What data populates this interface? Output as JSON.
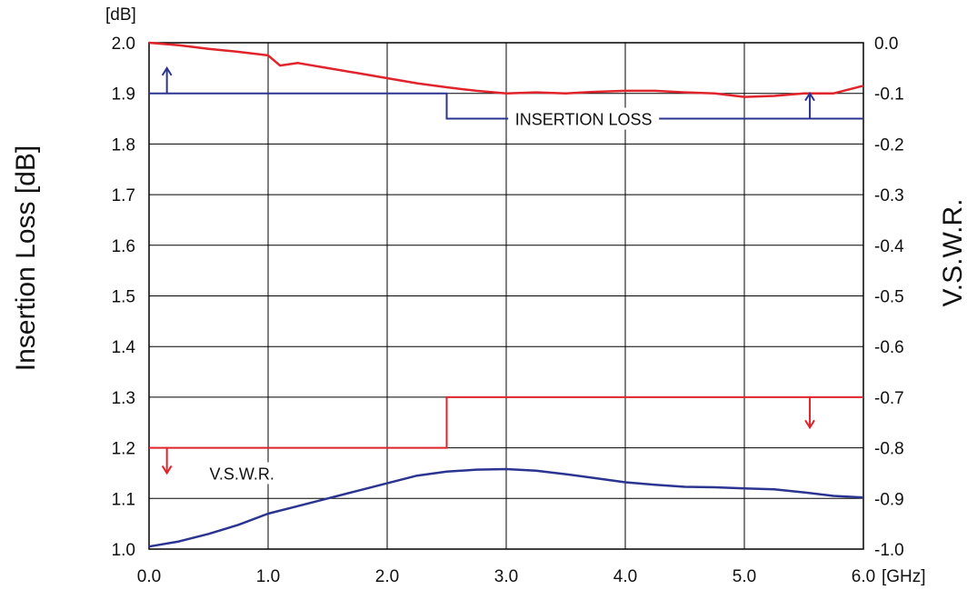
{
  "chart_data": {
    "type": "line",
    "title": "",
    "xlabel": "",
    "x_unit": "[GHz]",
    "ylabel_left": "Insertion Loss [dB]",
    "ylabel_right": "V.S.W.R.",
    "y_unit_left": "[dB]",
    "xlim": [
      0,
      6
    ],
    "ylim_left": [
      1.0,
      2.0
    ],
    "ylim_right": [
      -1.0,
      0.0
    ],
    "grid": true,
    "x_ticks": [
      "0.0",
      "1.0",
      "2.0",
      "3.0",
      "4.0",
      "5.0",
      "6.0"
    ],
    "y_ticks_left": [
      "1.0",
      "1.1",
      "1.2",
      "1.3",
      "1.4",
      "1.5",
      "1.6",
      "1.7",
      "1.8",
      "1.9",
      "2.0"
    ],
    "y_ticks_right": [
      "-1.0",
      "-0.9",
      "-0.8",
      "-0.7",
      "-0.6",
      "-0.5",
      "-0.4",
      "-0.3",
      "-0.2",
      "-0.1",
      "0.0"
    ],
    "colors": {
      "insertion_loss": "#2b3591",
      "vswr": "#e0242b",
      "grid": "#000000"
    },
    "series": [
      {
        "name": "INSERTION LOSS",
        "axis": "right",
        "color": "#e0242b",
        "x": [
          0.0,
          0.25,
          0.5,
          0.75,
          1.0,
          1.1,
          1.25,
          1.5,
          1.75,
          2.0,
          2.25,
          2.5,
          2.75,
          3.0,
          3.25,
          3.5,
          3.75,
          4.0,
          4.25,
          4.5,
          4.75,
          5.0,
          5.25,
          5.5,
          5.75,
          6.0
        ],
        "y": [
          0.0,
          -0.005,
          -0.012,
          -0.018,
          -0.025,
          -0.045,
          -0.04,
          -0.05,
          -0.06,
          -0.07,
          -0.08,
          -0.088,
          -0.095,
          -0.1,
          -0.098,
          -0.1,
          -0.097,
          -0.095,
          -0.095,
          -0.098,
          -0.1,
          -0.107,
          -0.105,
          -0.1,
          -0.1,
          -0.085
        ]
      },
      {
        "name": "V.S.W.R.",
        "axis": "left",
        "color": "#2b3591",
        "x": [
          0.0,
          0.25,
          0.5,
          0.75,
          1.0,
          1.25,
          1.5,
          1.75,
          2.0,
          2.25,
          2.5,
          2.75,
          3.0,
          3.25,
          3.5,
          3.75,
          4.0,
          4.25,
          4.5,
          4.75,
          5.0,
          5.25,
          5.5,
          5.75,
          6.0
        ],
        "y": [
          1.005,
          1.015,
          1.03,
          1.048,
          1.07,
          1.085,
          1.1,
          1.115,
          1.13,
          1.145,
          1.153,
          1.157,
          1.158,
          1.155,
          1.148,
          1.14,
          1.132,
          1.127,
          1.123,
          1.122,
          1.12,
          1.118,
          1.112,
          1.105,
          1.102
        ]
      }
    ],
    "limits": [
      {
        "name": "insertion-loss-limit",
        "axis": "right",
        "color": "#2b3591",
        "segments": [
          [
            0,
            2.5,
            -0.1
          ],
          [
            2.5,
            6.0,
            -0.15
          ]
        ]
      },
      {
        "name": "vswr-limit",
        "axis": "left",
        "color": "#e0242b",
        "segments": [
          [
            0,
            2.5,
            1.2
          ],
          [
            2.5,
            6.0,
            1.3
          ]
        ]
      }
    ],
    "annotations": [
      {
        "text": "INSERTION LOSS",
        "x": 3.65,
        "y": 1.85,
        "axis": "left"
      },
      {
        "text": "V.S.W.R.",
        "x": 0.78,
        "y": 1.15,
        "axis": "left"
      }
    ],
    "arrows": [
      {
        "name": "insertion-loss-limit-arrow-up-left",
        "x": 0.15,
        "from": 1.9,
        "to": 1.95,
        "color": "#2b3591"
      },
      {
        "name": "insertion-loss-limit-arrow-up-right",
        "x": 5.55,
        "from": 1.85,
        "to": 1.9,
        "color": "#2b3591"
      },
      {
        "name": "vswr-limit-arrow-down-left",
        "x": 0.15,
        "from": 1.2,
        "to": 1.15,
        "color": "#e0242b"
      },
      {
        "name": "vswr-limit-arrow-down-right",
        "x": 5.55,
        "from": 1.3,
        "to": 1.24,
        "color": "#e0242b"
      }
    ]
  }
}
